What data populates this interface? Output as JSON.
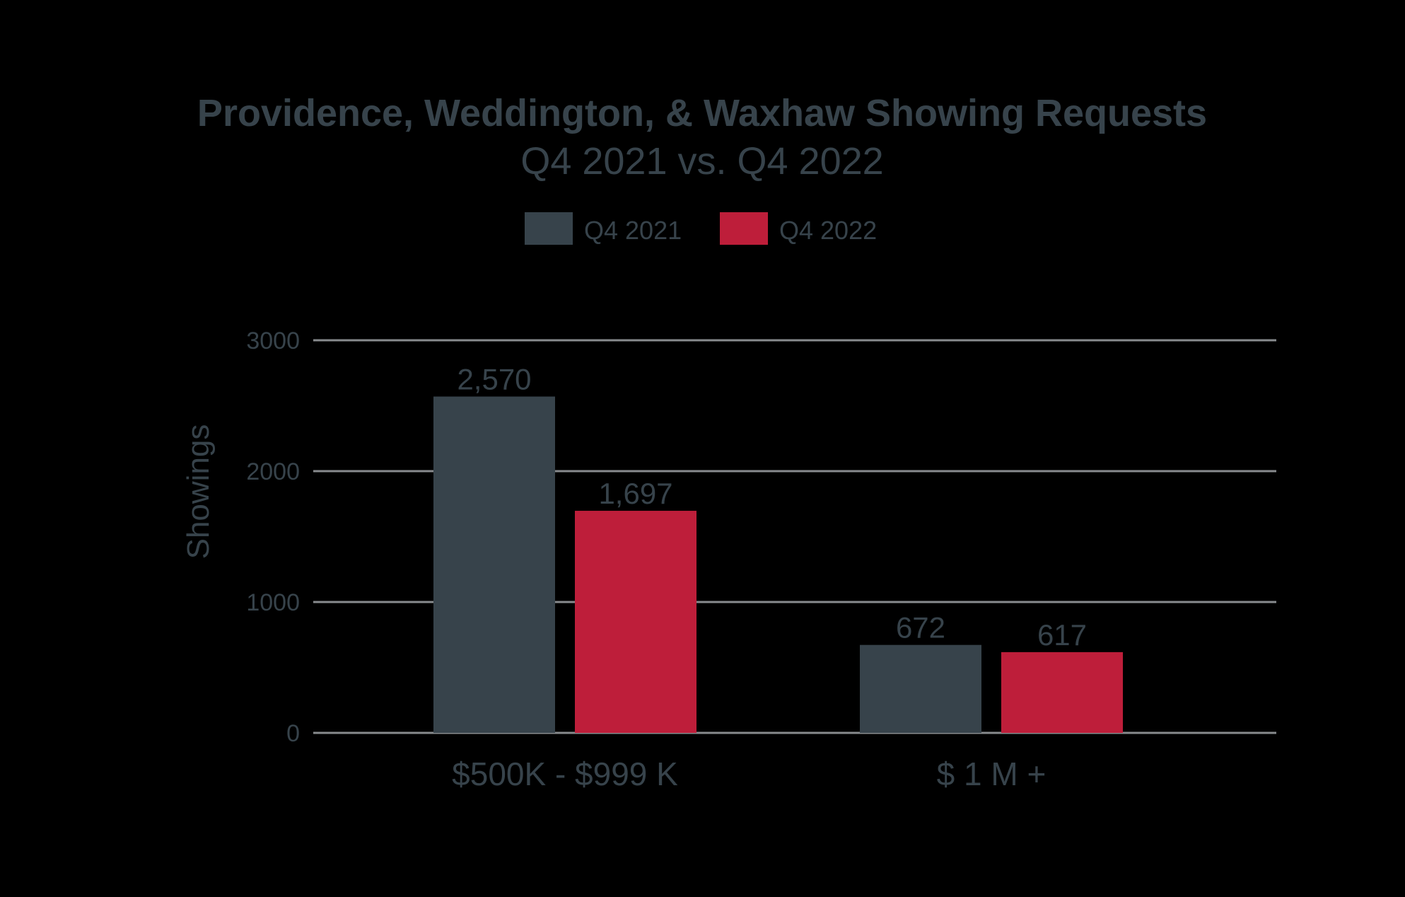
{
  "chart_data": {
    "type": "bar",
    "title": "Providence, Weddington, & Waxhaw Showing Requests",
    "subtitle": "Q4 2021 vs. Q4 2022",
    "xlabel": "",
    "ylabel": "Showings",
    "ylim": [
      0,
      3000
    ],
    "yticks": [
      0,
      1000,
      2000,
      3000
    ],
    "ytick_labels": [
      "0",
      "1000",
      "2000",
      "3000"
    ],
    "grid": true,
    "legend_position": "top-center",
    "categories": [
      "$500K - $999 K",
      "$ 1 M +"
    ],
    "series": [
      {
        "name": "Q4 2021",
        "color": "#37434b",
        "values": [
          2570,
          672
        ],
        "labels": [
          "2,570",
          "672"
        ]
      },
      {
        "name": "Q4 2022",
        "color": "#be1e3a",
        "values": [
          1697,
          617
        ],
        "labels": [
          "1,697",
          "617"
        ]
      }
    ]
  }
}
